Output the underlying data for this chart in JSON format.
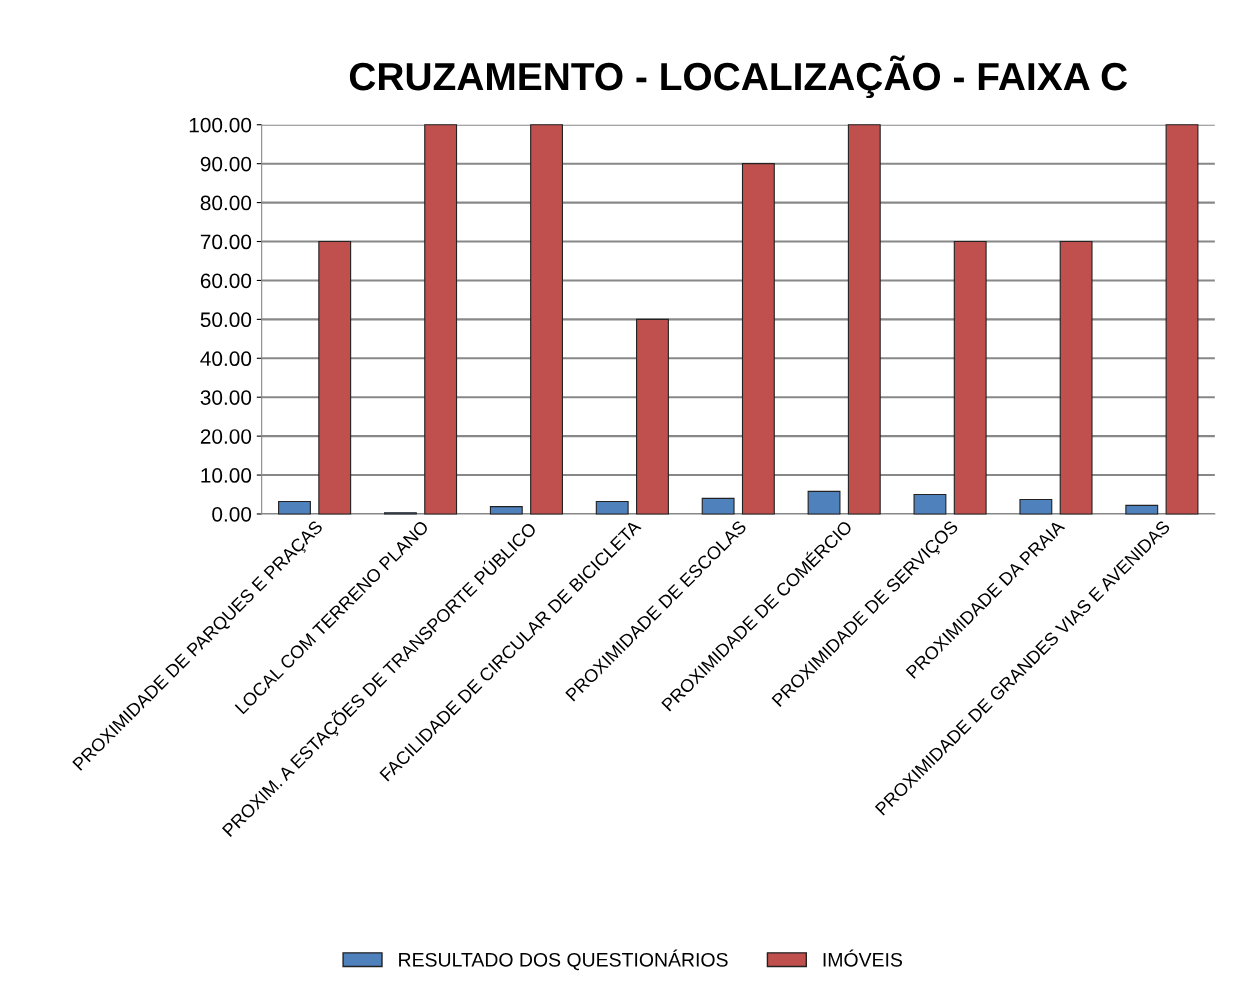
{
  "chart_data": {
    "type": "bar",
    "title": "CRUZAMENTO - LOCALIZAÇÃO - FAIXA C",
    "categories": [
      "PROXIMIDADE DE PARQUES E PRAÇAS",
      "LOCAL COM TERRENO PLANO",
      "PROXIM. A ESTAÇÕES DE TRANSPORTE PÚBLICO",
      "FACILIDADE DE CIRCULAR DE BICICLETA",
      "PROXIMIDADE DE ESCOLAS",
      "PROXIMIDADE DE COMÉRCIO",
      "PROXIMIDADE DE SERVIÇOS",
      "PROXIMIDADE DA PRAIA",
      "PROXIMIDADE DE GRANDES VIAS E AVENIDAS"
    ],
    "series": [
      {
        "name": "RESULTADO DOS QUESTIONÁRIOS",
        "color": "#4f81bd",
        "values": [
          3.2,
          0.3,
          1.9,
          3.2,
          4.0,
          5.8,
          5.0,
          3.7,
          2.2
        ]
      },
      {
        "name": "IMÓVEIS",
        "color": "#c0504d",
        "values": [
          70,
          100,
          100,
          50,
          90,
          100,
          70,
          70,
          100
        ]
      }
    ],
    "ylim": [
      0,
      100
    ],
    "yticks": [
      {
        "value": 0,
        "label": "0.00"
      },
      {
        "value": 10,
        "label": "10.00"
      },
      {
        "value": 20,
        "label": "20.00"
      },
      {
        "value": 30,
        "label": "30.00"
      },
      {
        "value": 40,
        "label": "40.00"
      },
      {
        "value": 50,
        "label": "50.00"
      },
      {
        "value": 60,
        "label": "60.00"
      },
      {
        "value": 70,
        "label": "70.00"
      },
      {
        "value": 80,
        "label": "80.00"
      },
      {
        "value": 90,
        "label": "90.00"
      },
      {
        "value": 100,
        "label": "100.00"
      }
    ],
    "grid": "y",
    "legend": "bottom"
  }
}
